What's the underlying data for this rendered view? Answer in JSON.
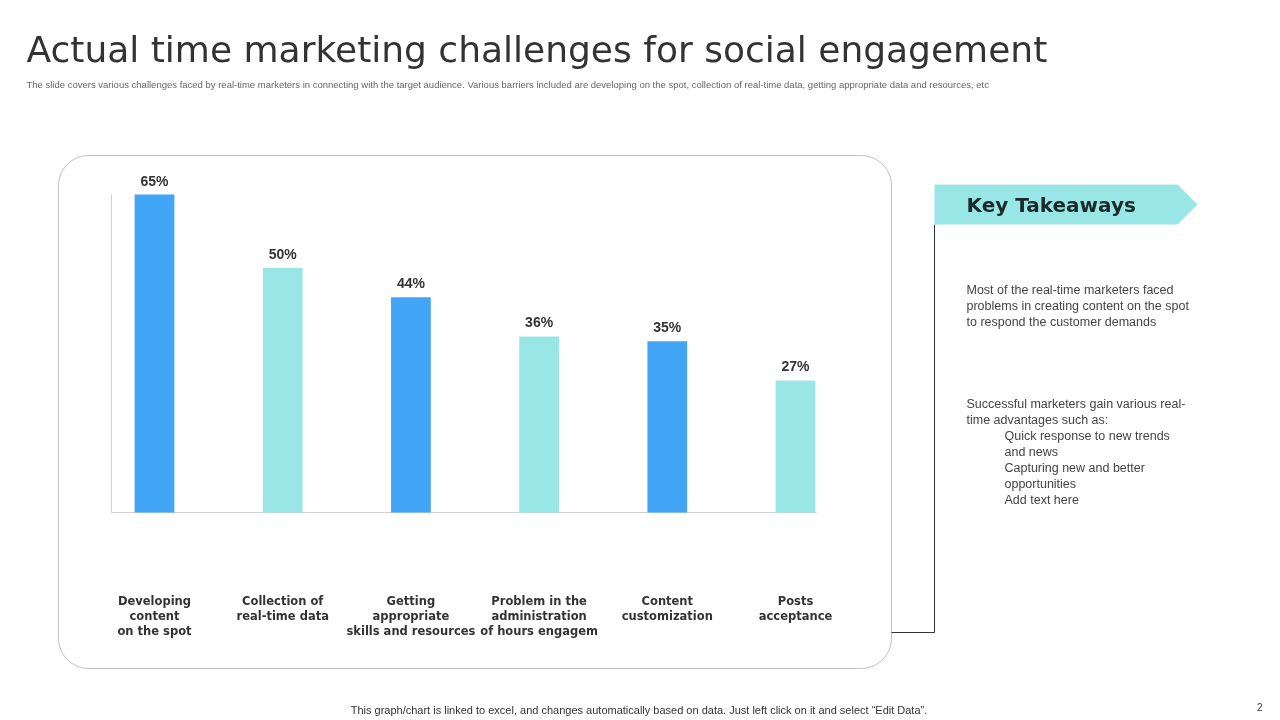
{
  "chart_data": {
    "type": "bar",
    "title": "Actual time marketing challenges for social engagement",
    "subtitle": "The slide covers various challenges faced by real-time marketers in  connecting with the target audience. Various barriers included are developing on the spot, collection of real-time data, getting appropriate data and resources, etc",
    "categories": [
      "Developing\ncontent\non the spot",
      "Collection of\nreal-time data",
      "Getting\nappropriate\nskills and resources",
      "Problem in the\nadministration\nof hours engagem",
      "Content\ncustomization",
      "Posts\nacceptance"
    ],
    "values": [
      65,
      50,
      44,
      36,
      35,
      27
    ],
    "value_labels": [
      "65%",
      "50%",
      "44%",
      "36%",
      "35%",
      "27%"
    ],
    "colors": [
      "#42a5f5",
      "#99e6e6",
      "#42a5f5",
      "#99e6e6",
      "#42a5f5",
      "#99e6e6"
    ],
    "annotations": [
      "Key Takeaways",
      "Most of the real-time  marketers faced\nproblems in creating content on the spot\nto respond the customer demands",
      "Successful marketers gain various  real-\ntime advantages  such as:",
      "Quick response to new trends\nand news",
      "Capturing new and better\nopportunities",
      "Add text here",
      "This graph/chart is linked to excel,  and changes automatically based on data. Just left click on it and select “Edit Data”.",
      "2"
    ]
  }
}
